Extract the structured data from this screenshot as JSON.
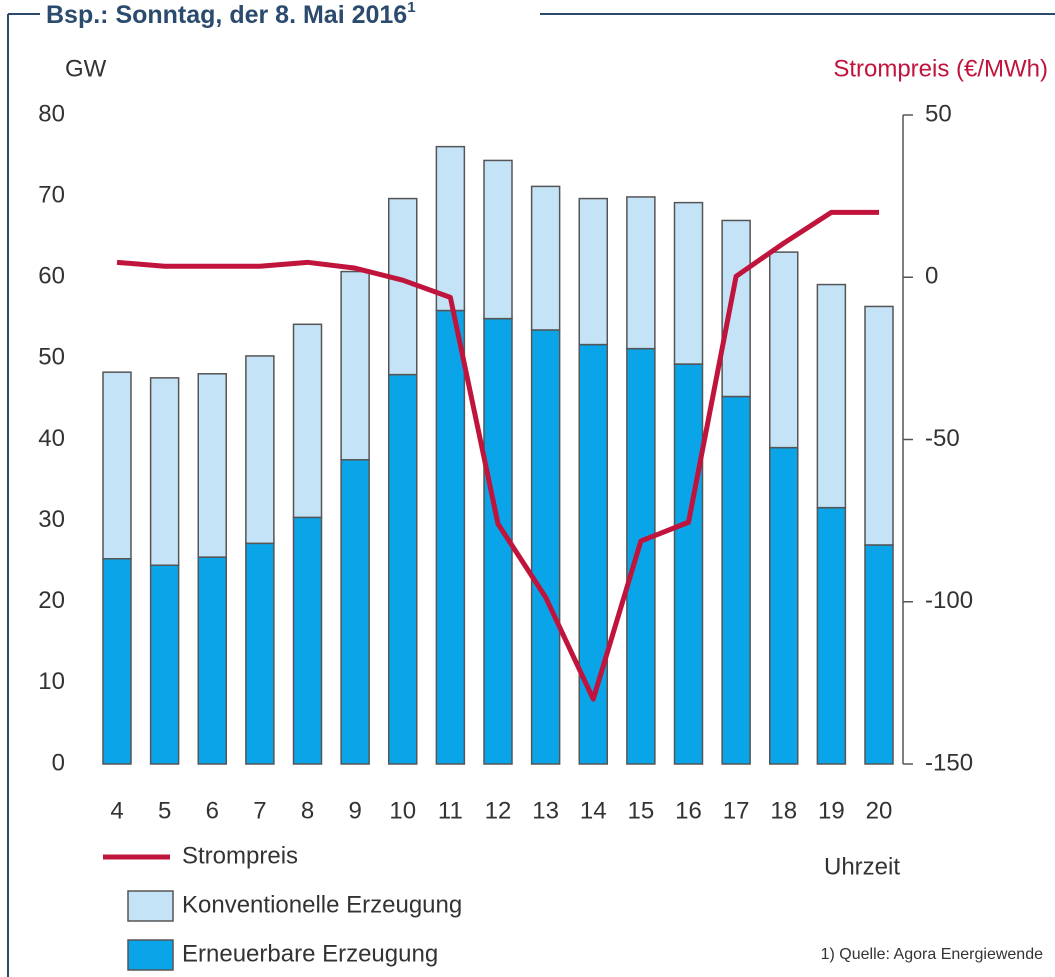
{
  "chart_data": {
    "type": "bar",
    "title": "Bsp.: Sonntag, der 8. Mai 2016",
    "title_note": "1",
    "y_label": "GW",
    "y2_label": "Strompreis (€/MWh)",
    "x_label": "Uhrzeit",
    "footnote": "1) Quelle: Agora Energiewende",
    "categories": [
      "4",
      "5",
      "6",
      "7",
      "8",
      "9",
      "10",
      "11",
      "12",
      "13",
      "14",
      "15",
      "16",
      "17",
      "18",
      "19",
      "20"
    ],
    "series": [
      {
        "name": "Strompreis",
        "type": "line",
        "axis": "y2",
        "color": "#c0143c",
        "values": [
          4.6,
          3.4,
          3.4,
          3.4,
          4.6,
          2.8,
          -0.9,
          -6.2,
          -76,
          -98.6,
          -130,
          -81.3,
          -75.5,
          0.3,
          10.5,
          20,
          20
        ]
      },
      {
        "name": "Konventionelle Erzeugung",
        "type": "bar",
        "color": "#c5e3f7",
        "values": [
          23.0,
          23.1,
          22.6,
          23.1,
          23.8,
          23.2,
          21.7,
          20.2,
          19.5,
          17.7,
          18.0,
          18.7,
          19.9,
          21.7,
          24.1,
          27.5,
          29.4
        ]
      },
      {
        "name": "Erneuerbare Erzeugung",
        "type": "bar",
        "color": "#0aa5e8",
        "values": [
          25.3,
          24.5,
          25.5,
          27.2,
          30.4,
          37.5,
          48.0,
          55.9,
          54.9,
          53.5,
          51.7,
          51.2,
          49.3,
          45.3,
          39.0,
          31.6,
          27.0
        ]
      }
    ],
    "ylim": [
      0,
      80
    ],
    "yticks": [
      0,
      10,
      20,
      30,
      40,
      50,
      60,
      70,
      80
    ],
    "y2lim": [
      -150,
      50
    ],
    "y2ticks": [
      -150,
      -100,
      -50,
      0,
      50
    ],
    "stacked": true
  }
}
